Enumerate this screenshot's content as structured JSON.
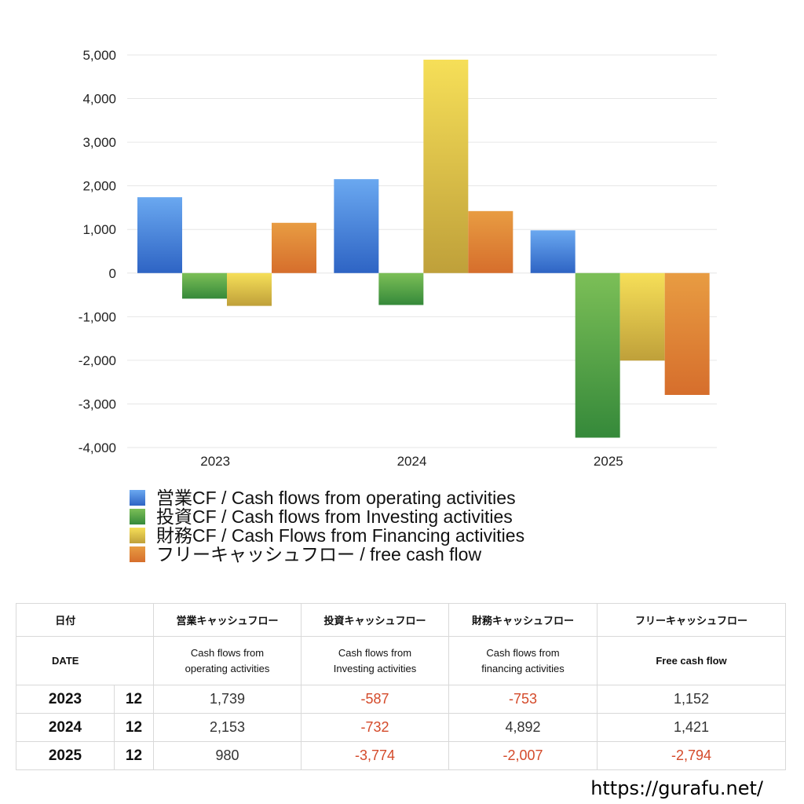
{
  "chart_data": {
    "type": "bar",
    "categories": [
      "2023",
      "2024",
      "2025"
    ],
    "ylim": [
      -4000,
      5000
    ],
    "yticks": [
      5000,
      4000,
      3000,
      2000,
      1000,
      0,
      -1000,
      -2000,
      -3000,
      -4000
    ],
    "ytick_labels": [
      "5,000",
      "4,000",
      "3,000",
      "2,000",
      "1,000",
      "0",
      "-1,000",
      "-2,000",
      "-3,000",
      "-4,000"
    ],
    "grid": true,
    "legend_position": "bottom",
    "series": [
      {
        "name": "営業CF / Cash flows from operating activities",
        "values": [
          1739,
          2153,
          980
        ],
        "color_top": "#6aa8f0",
        "color_bottom": "#2e64c4",
        "legend_color": "#3f7fdb"
      },
      {
        "name": "投資CF / Cash flows from Investing activities",
        "values": [
          -587,
          -732,
          -3774
        ],
        "color_top": "#7cbf57",
        "color_bottom": "#35893a",
        "legend_color": "#4c9d3f"
      },
      {
        "name": "財務CF / Cash Flows from Financing activities",
        "values": [
          -753,
          4892,
          -2007
        ],
        "color_top": "#f6df58",
        "color_bottom": "#bfa03a",
        "legend_color": "#e1c445"
      },
      {
        "name": "フリーキャッシュフロー / free cash flow",
        "values": [
          1152,
          1421,
          -2794
        ],
        "color_top": "#e89c42",
        "color_bottom": "#d66e2c",
        "legend_color": "#e0833a"
      }
    ]
  },
  "table": {
    "header_jp": {
      "date": "日付",
      "operating": "営業キャッシュフロー",
      "investing": "投資キャッシュフロー",
      "financing": "財務キャッシュフロー",
      "free": "フリーキャッシュフロー"
    },
    "header_en": {
      "date": "DATE",
      "operating_1": "Cash flows from",
      "operating_2": "operating activities",
      "investing_1": "Cash flows from",
      "investing_2": "Investing activities",
      "financing_1": "Cash flows from",
      "financing_2": "financing activities",
      "free": "Free cash flow"
    },
    "rows": [
      {
        "year": "2023",
        "month": "12",
        "operating": "1,739",
        "investing": "-587",
        "financing": "-753",
        "free": "1,152"
      },
      {
        "year": "2024",
        "month": "12",
        "operating": "2,153",
        "investing": "-732",
        "financing": "4,892",
        "free": "1,421"
      },
      {
        "year": "2025",
        "month": "12",
        "operating": "980",
        "investing": "-3,774",
        "financing": "-2,007",
        "free": "-2,794"
      }
    ]
  },
  "footer": {
    "url": "https://gurafu.net/"
  }
}
